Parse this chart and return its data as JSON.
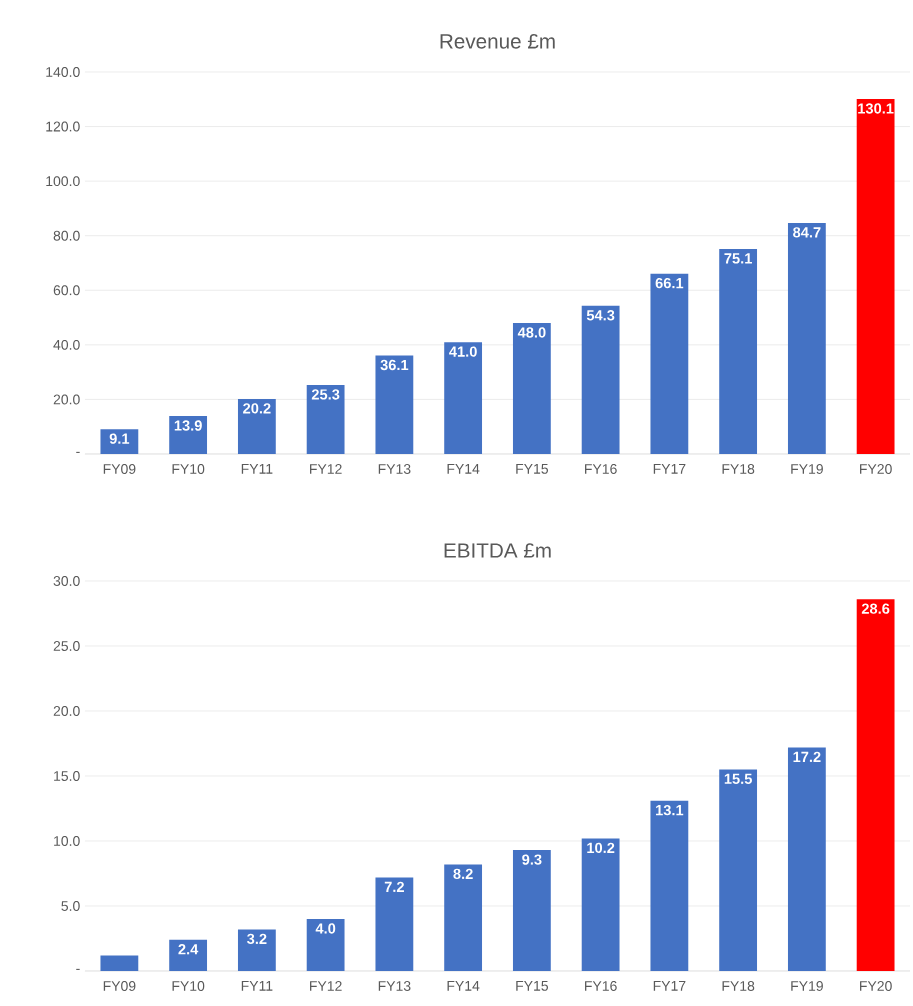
{
  "chart_data": [
    {
      "type": "bar",
      "title": "Revenue £m",
      "categories": [
        "FY09",
        "FY10",
        "FY11",
        "FY12",
        "FY13",
        "FY14",
        "FY15",
        "FY16",
        "FY17",
        "FY18",
        "FY19",
        "FY20"
      ],
      "values": [
        9.1,
        13.9,
        20.2,
        25.3,
        36.1,
        41.0,
        48.0,
        54.3,
        66.1,
        75.1,
        84.7,
        130.1
      ],
      "colors": [
        "#4472c4",
        "#4472c4",
        "#4472c4",
        "#4472c4",
        "#4472c4",
        "#4472c4",
        "#4472c4",
        "#4472c4",
        "#4472c4",
        "#4472c4",
        "#4472c4",
        "#ff0000"
      ],
      "value_labels": [
        "9.1",
        "13.9",
        "20.2",
        "25.3",
        "36.1",
        "41.0",
        "48.0",
        "54.3",
        "66.1",
        "75.1",
        "84.7",
        "130.1"
      ],
      "ylim": [
        0,
        140
      ],
      "yticks": [
        {
          "value": 0,
          "label": "-"
        },
        {
          "value": 20,
          "label": "20.0"
        },
        {
          "value": 40,
          "label": "40.0"
        },
        {
          "value": 60,
          "label": "60.0"
        },
        {
          "value": 80,
          "label": "80.0"
        },
        {
          "value": 100,
          "label": "100.0"
        },
        {
          "value": 120,
          "label": "120.0"
        },
        {
          "value": 140,
          "label": "140.0"
        }
      ],
      "grid": "y"
    },
    {
      "type": "bar",
      "title": "EBITDA £m",
      "categories": [
        "FY09",
        "FY10",
        "FY11",
        "FY12",
        "FY13",
        "FY14",
        "FY15",
        "FY16",
        "FY17",
        "FY18",
        "FY19",
        "FY20"
      ],
      "values": [
        1.2,
        2.4,
        3.2,
        4.0,
        7.2,
        8.2,
        9.3,
        10.2,
        13.1,
        15.5,
        17.2,
        28.6
      ],
      "colors": [
        "#4472c4",
        "#4472c4",
        "#4472c4",
        "#4472c4",
        "#4472c4",
        "#4472c4",
        "#4472c4",
        "#4472c4",
        "#4472c4",
        "#4472c4",
        "#4472c4",
        "#ff0000"
      ],
      "value_labels": [
        null,
        "2.4",
        "3.2",
        "4.0",
        "7.2",
        "8.2",
        "9.3",
        "10.2",
        "13.1",
        "15.5",
        "17.2",
        "28.6"
      ],
      "ylim": [
        0,
        30
      ],
      "yticks": [
        {
          "value": 0,
          "label": "-"
        },
        {
          "value": 5,
          "label": "5.0"
        },
        {
          "value": 10,
          "label": "10.0"
        },
        {
          "value": 15,
          "label": "15.0"
        },
        {
          "value": 20,
          "label": "20.0"
        },
        {
          "value": 25,
          "label": "25.0"
        },
        {
          "value": 30,
          "label": "30.0"
        }
      ],
      "grid": "y"
    }
  ]
}
